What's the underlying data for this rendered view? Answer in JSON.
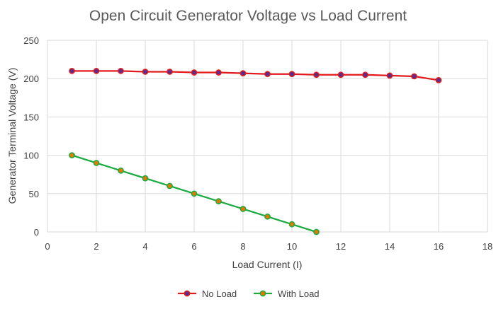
{
  "chart_data": {
    "type": "line",
    "title": "Open Circuit Generator Voltage vs Load Current",
    "xlabel": "Load Current (I)",
    "ylabel": "Generator Terminal Voltage (V)",
    "xlim": [
      0,
      18
    ],
    "ylim": [
      0,
      250
    ],
    "xticks": [
      0,
      2,
      4,
      6,
      8,
      10,
      12,
      14,
      16,
      18
    ],
    "yticks": [
      0,
      50,
      100,
      150,
      200,
      250
    ],
    "grid": true,
    "legend_position": "bottom",
    "series": [
      {
        "name": "No Load",
        "color": "#e31a1c",
        "marker_color": "#5b2d8e",
        "x": [
          1,
          2,
          3,
          4,
          5,
          6,
          7,
          8,
          9,
          10,
          11,
          12,
          13,
          14,
          15,
          16
        ],
        "y": [
          210,
          210,
          210,
          209,
          209,
          208,
          208,
          207,
          206,
          206,
          205,
          205,
          205,
          204,
          203,
          198
        ]
      },
      {
        "name": "With Load",
        "color": "#1aab40",
        "marker_color": "#e07b00",
        "x": [
          1,
          2,
          3,
          4,
          5,
          6,
          7,
          8,
          9,
          10,
          11
        ],
        "y": [
          100,
          90,
          80,
          70,
          60,
          50,
          40,
          30,
          20,
          10,
          0
        ]
      }
    ]
  }
}
